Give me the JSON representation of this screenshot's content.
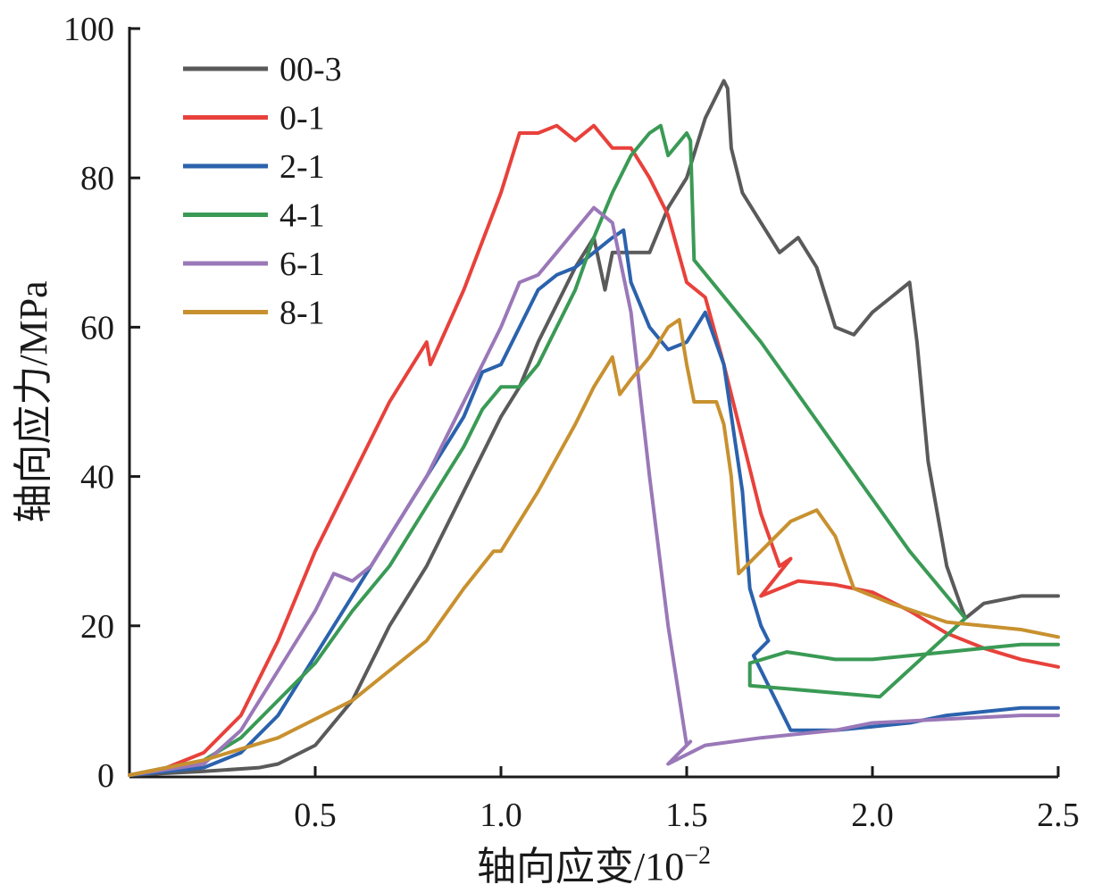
{
  "chart_data": {
    "type": "line",
    "xlabel": "轴向应变/10",
    "xlabel_sup": "−2",
    "ylabel": "轴向应力/MPa",
    "xlim": [
      0,
      2.5
    ],
    "ylim": [
      0,
      100
    ],
    "x_ticks": [
      0.5,
      1.0,
      1.5,
      2.0,
      2.5
    ],
    "x_tick_labels": [
      "0.5",
      "1.0",
      "1.5",
      "2.0",
      "2.5"
    ],
    "y_ticks": [
      0,
      20,
      40,
      60,
      80,
      100
    ],
    "y_tick_labels": [
      "0",
      "20",
      "40",
      "60",
      "80",
      "100"
    ],
    "grid": false,
    "legend_position": "top-left",
    "series": [
      {
        "name": "00-3",
        "color": "#5a5a5a",
        "x": [
          0,
          0.2,
          0.35,
          0.4,
          0.5,
          0.6,
          0.7,
          0.8,
          0.9,
          1.0,
          1.05,
          1.1,
          1.2,
          1.25,
          1.28,
          1.3,
          1.4,
          1.45,
          1.5,
          1.55,
          1.6,
          1.61,
          1.62,
          1.65,
          1.7,
          1.75,
          1.8,
          1.85,
          1.9,
          1.95,
          2.0,
          2.05,
          2.1,
          2.12,
          2.15,
          2.2,
          2.25,
          2.3,
          2.4,
          2.5
        ],
        "y": [
          0,
          0.5,
          1,
          1.5,
          4,
          10,
          20,
          28,
          38,
          48,
          52,
          58,
          68,
          72,
          65,
          70,
          70,
          76,
          80,
          88,
          93,
          92,
          84,
          78,
          74,
          70,
          72,
          68,
          60,
          59,
          62,
          64,
          66,
          58,
          42,
          28,
          21,
          23,
          24,
          24
        ]
      },
      {
        "name": "0-1",
        "color": "#e8413b",
        "x": [
          0,
          0.1,
          0.2,
          0.3,
          0.4,
          0.5,
          0.6,
          0.7,
          0.8,
          0.81,
          0.9,
          1.0,
          1.05,
          1.1,
          1.15,
          1.2,
          1.25,
          1.3,
          1.35,
          1.4,
          1.45,
          1.5,
          1.55,
          1.6,
          1.7,
          1.75,
          1.78,
          1.7,
          1.8,
          1.9,
          2.0,
          2.1,
          2.2,
          2.3,
          2.4,
          2.5
        ],
        "y": [
          0,
          1,
          3,
          8,
          18,
          30,
          40,
          50,
          58,
          55,
          65,
          78,
          86,
          86,
          87,
          85,
          87,
          84,
          84,
          80,
          75,
          66,
          64,
          55,
          35,
          28,
          29,
          24,
          26,
          25.5,
          24.5,
          22,
          19,
          17,
          15.5,
          14.5
        ]
      },
      {
        "name": "2-1",
        "color": "#2b62ad",
        "x": [
          0,
          0.2,
          0.3,
          0.4,
          0.5,
          0.6,
          0.7,
          0.8,
          0.9,
          0.95,
          1.0,
          1.05,
          1.1,
          1.15,
          1.2,
          1.25,
          1.3,
          1.33,
          1.35,
          1.4,
          1.45,
          1.5,
          1.55,
          1.6,
          1.65,
          1.67,
          1.7,
          1.72,
          1.68,
          1.78,
          1.9,
          2.0,
          2.1,
          2.2,
          2.3,
          2.4,
          2.5
        ],
        "y": [
          0,
          1,
          3,
          8,
          16,
          24,
          32,
          40,
          48,
          54,
          55,
          60,
          65,
          67,
          68,
          70,
          72,
          73,
          66,
          60,
          57,
          58,
          62,
          55,
          38,
          25,
          20,
          18,
          16,
          6,
          6,
          6.5,
          7,
          8,
          8.5,
          9,
          9
        ]
      },
      {
        "name": "4-1",
        "color": "#3a9a55",
        "x": [
          0,
          0.2,
          0.3,
          0.4,
          0.5,
          0.6,
          0.7,
          0.8,
          0.9,
          0.95,
          1.0,
          1.05,
          1.1,
          1.15,
          1.2,
          1.25,
          1.3,
          1.35,
          1.4,
          1.43,
          1.45,
          1.5,
          1.51,
          1.52,
          1.7,
          1.9,
          2.1,
          2.25,
          2.02,
          1.67,
          1.67,
          1.77,
          1.9,
          2.0,
          2.1,
          2.2,
          2.3,
          2.4,
          2.5
        ],
        "y": [
          0,
          2,
          5,
          10,
          15,
          22,
          28,
          36,
          44,
          49,
          52,
          52,
          55,
          60,
          65,
          72,
          78,
          83,
          86,
          87,
          83,
          86,
          85,
          69,
          58,
          44,
          30,
          21,
          10.5,
          12,
          15,
          16.5,
          15.5,
          15.5,
          16,
          16.5,
          17,
          17.5,
          17.5
        ]
      },
      {
        "name": "6-1",
        "color": "#9a78b8",
        "x": [
          0,
          0.2,
          0.3,
          0.4,
          0.5,
          0.55,
          0.6,
          0.65,
          0.7,
          0.8,
          0.9,
          1.0,
          1.05,
          1.1,
          1.15,
          1.2,
          1.25,
          1.3,
          1.35,
          1.4,
          1.45,
          1.5,
          1.51,
          1.45,
          1.47,
          1.55,
          1.7,
          1.9,
          2.0,
          2.2,
          2.4,
          2.5
        ],
        "y": [
          0,
          1.5,
          6,
          14,
          22,
          27,
          26,
          28,
          32,
          40,
          50,
          60,
          66,
          67,
          70,
          73,
          76,
          74,
          62,
          40,
          20,
          4,
          4.5,
          1.5,
          2,
          4,
          5,
          6,
          7,
          7.5,
          8,
          8
        ]
      },
      {
        "name": "8-1",
        "color": "#c8912f",
        "x": [
          0,
          0.2,
          0.4,
          0.6,
          0.8,
          0.9,
          0.98,
          1.0,
          1.1,
          1.2,
          1.25,
          1.3,
          1.32,
          1.35,
          1.4,
          1.45,
          1.48,
          1.5,
          1.52,
          1.55,
          1.58,
          1.6,
          1.62,
          1.64,
          1.7,
          1.78,
          1.85,
          1.9,
          1.95,
          2.05,
          2.2,
          2.4,
          2.5
        ],
        "y": [
          0,
          2,
          5,
          10,
          18,
          25,
          30,
          30,
          38,
          47,
          52,
          56,
          51,
          53,
          56,
          60,
          61,
          55,
          50,
          50,
          50,
          47,
          40,
          27,
          30,
          34,
          35.5,
          32,
          25,
          23,
          20.5,
          19.5,
          18.5
        ]
      }
    ]
  }
}
